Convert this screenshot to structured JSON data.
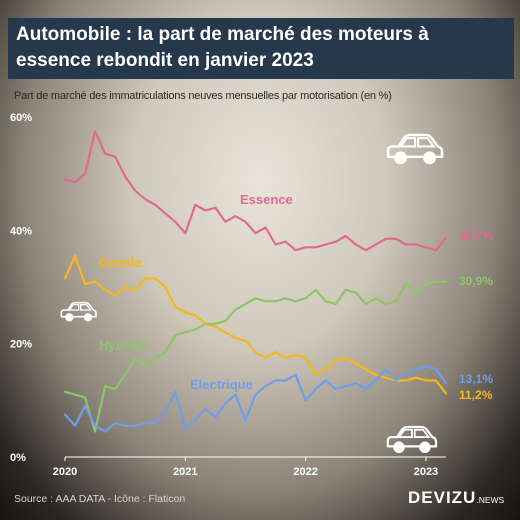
{
  "header": {
    "title": "Automobile : la part de marché des moteurs à essence rebondit en janvier 2023",
    "subtitle": "Part de marché des immatriculations neuves mensuelles par motorisation (en %)"
  },
  "footer": {
    "source": "Source : AAA DATA - Icône : Flaticon",
    "brand": "DEVIZU",
    "brand_suffix": ".NEWS"
  },
  "icons": [
    "car-icon",
    "car-icon",
    "car-icon"
  ],
  "chart_data": {
    "type": "line",
    "x_ticks": [
      "2020",
      "2021",
      "2022",
      "2023"
    ],
    "y_ticks": [
      "0%",
      "20%",
      "40%",
      "60%"
    ],
    "ylim": [
      0,
      60
    ],
    "grid": false,
    "x_start": "2020-01",
    "series": [
      {
        "name": "Essence",
        "color": "#e06a8f",
        "end_label": "38,7%",
        "values": [
          49.0,
          48.5,
          50.0,
          57.5,
          53.5,
          53.0,
          49.5,
          47.0,
          45.5,
          44.5,
          43.0,
          41.5,
          39.5,
          44.5,
          43.5,
          44.0,
          41.5,
          42.5,
          41.5,
          39.5,
          40.5,
          37.5,
          38.0,
          36.5,
          37.0,
          37.0,
          37.5,
          38.0,
          39.0,
          37.5,
          36.5,
          37.5,
          38.5,
          38.5,
          37.5,
          37.5,
          37.0,
          36.5,
          38.7
        ]
      },
      {
        "name": "Gazole",
        "color": "#f2b81c",
        "end_label": "11,2%",
        "values": [
          31.5,
          35.5,
          30.5,
          31.0,
          29.5,
          28.5,
          30.0,
          29.5,
          31.5,
          31.5,
          30.0,
          26.5,
          25.5,
          25.0,
          23.5,
          23.0,
          22.0,
          21.0,
          20.5,
          18.5,
          17.5,
          18.5,
          17.5,
          18.0,
          17.5,
          14.5,
          15.5,
          17.0,
          17.5,
          16.5,
          15.5,
          14.5,
          14.0,
          13.5,
          13.5,
          14.0,
          13.5,
          13.5,
          11.2
        ]
      },
      {
        "name": "Hybride",
        "color": "#8ec46a",
        "end_label": "30,9%",
        "values": [
          11.5,
          11.0,
          10.5,
          4.5,
          12.5,
          12.0,
          14.5,
          17.5,
          16.0,
          17.5,
          18.5,
          21.5,
          22.0,
          22.5,
          23.5,
          23.5,
          24.0,
          26.0,
          27.0,
          28.0,
          27.5,
          27.5,
          28.0,
          27.5,
          28.0,
          29.5,
          27.5,
          27.0,
          29.5,
          29.0,
          27.0,
          28.0,
          27.0,
          27.5,
          30.5,
          29.0,
          30.5,
          31.0,
          30.9
        ]
      },
      {
        "name": "Electrique",
        "color": "#6e9ee8",
        "end_label": "13,1%",
        "values": [
          7.5,
          5.5,
          9.0,
          5.5,
          4.5,
          6.0,
          5.5,
          5.5,
          6.0,
          6.0,
          8.0,
          11.5,
          5.0,
          6.5,
          8.5,
          7.0,
          9.5,
          11.0,
          6.5,
          11.0,
          12.5,
          13.5,
          13.5,
          14.5,
          10.0,
          12.0,
          13.5,
          12.0,
          12.5,
          13.0,
          12.0,
          13.5,
          15.5,
          13.5,
          14.5,
          15.5,
          16.0,
          15.5,
          13.1
        ]
      }
    ]
  }
}
